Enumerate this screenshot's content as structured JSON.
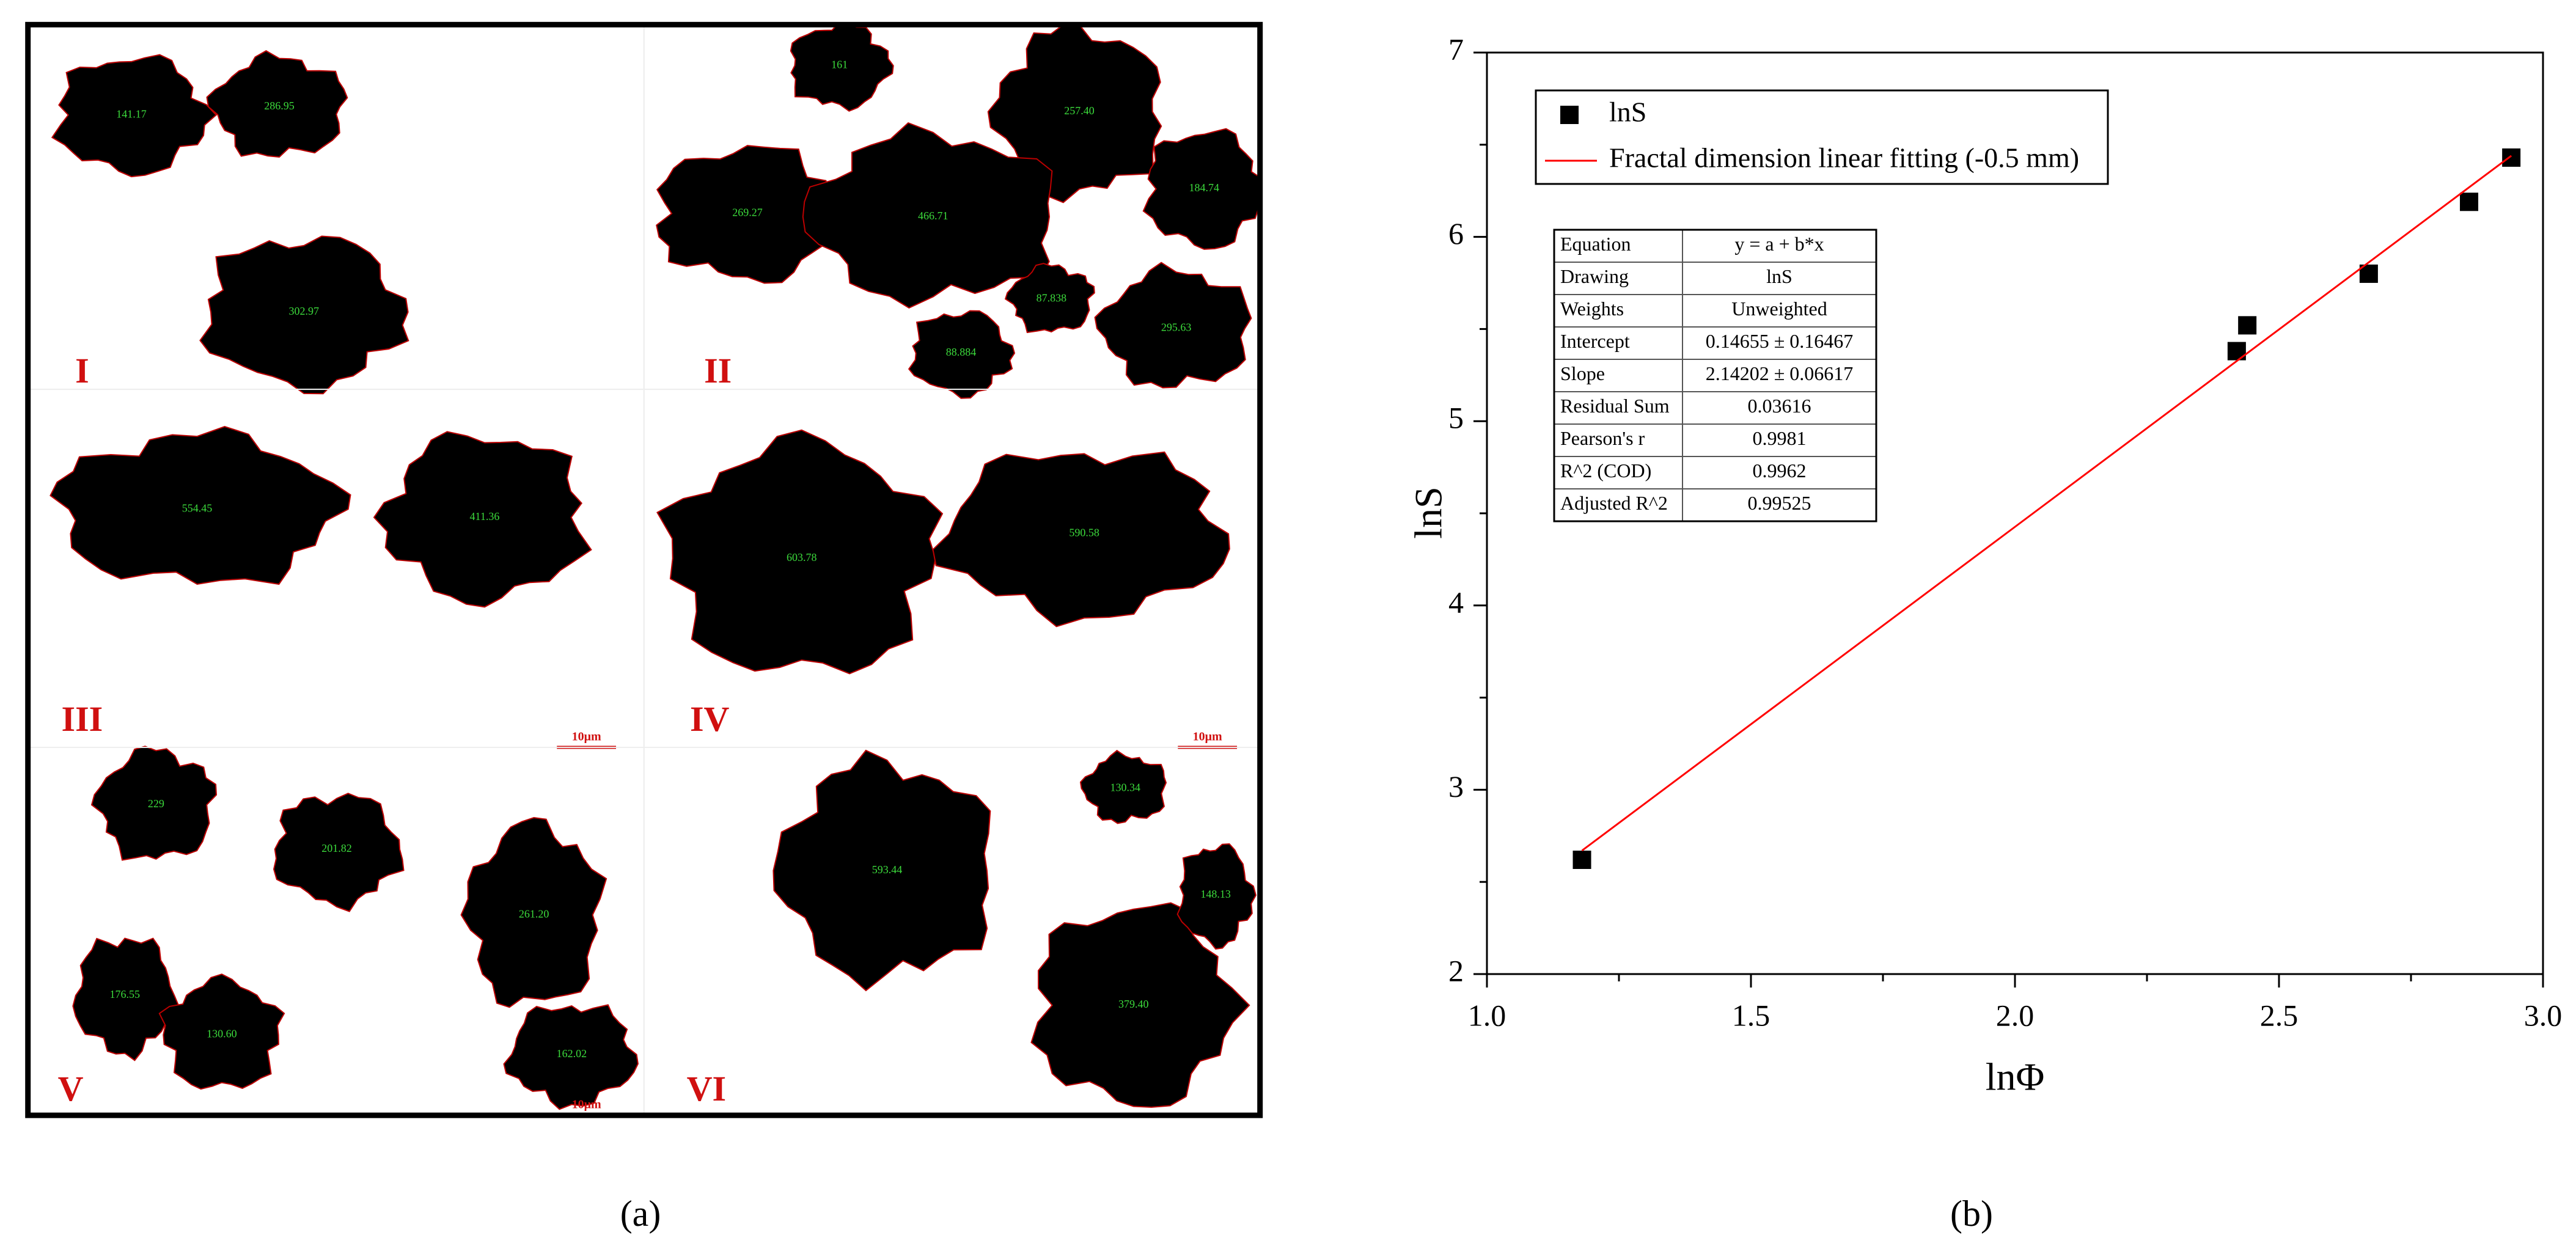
{
  "figure": {
    "captions": [
      "(a)",
      "(b)"
    ],
    "micrographs": [
      {
        "label": "I",
        "particles": [
          "141.17",
          "286.95",
          "302.97"
        ]
      },
      {
        "label": "II",
        "particles": [
          "161",
          "257.40",
          "269.27",
          "466.71",
          "184.74",
          "295.63",
          "88.884",
          "87.838"
        ]
      },
      {
        "label": "III",
        "particles": [
          "554.45",
          "411.36"
        ],
        "scale_bar": "10μm"
      },
      {
        "label": "IV",
        "particles": [
          "603.78",
          "590.58"
        ],
        "scale_bar": "10μm"
      },
      {
        "label": "V",
        "particles": [
          "229",
          "201.82",
          "261.20",
          "176.55",
          "130.60",
          "162.02"
        ],
        "scale_bar": "10μm"
      },
      {
        "label": "VI",
        "particles": [
          "593.44",
          "379.40",
          "130.34",
          "148.13"
        ]
      }
    ]
  },
  "chart_data": {
    "type": "scatter",
    "xlabel": "lnΦ",
    "ylabel": "lnS",
    "xlim": [
      1,
      3
    ],
    "xticks": [
      {
        "value": 1,
        "label": "1.0"
      },
      {
        "value": 1.5,
        "label": "1.5"
      },
      {
        "value": 2,
        "label": "2.0"
      },
      {
        "value": 2.5,
        "label": "2.5"
      },
      {
        "value": 3,
        "label": "3.0"
      }
    ],
    "xminorticks": [
      1.25,
      1.75,
      2.25,
      2.75
    ],
    "ylim": [
      2,
      7
    ],
    "yticks": [
      2,
      3,
      4,
      5,
      6,
      7
    ],
    "yminorticks": [
      2.5,
      3.5,
      4.5,
      5.5,
      6.5
    ],
    "legend": "upper-left",
    "series": [
      {
        "name": "lnS",
        "type": "scatter",
        "color": "#000000",
        "x": [
          1.18,
          2.42,
          2.44,
          2.67,
          2.86,
          2.94
        ],
        "values": [
          2.62,
          5.38,
          5.52,
          5.8,
          6.19,
          6.43
        ]
      },
      {
        "name": "Fractal dimension linear fitting (-0.5 mm)",
        "type": "line",
        "color": "#ff0000",
        "x": [
          1.18,
          2.94
        ],
        "values": [
          2.67,
          6.44
        ]
      }
    ],
    "fit_table": {
      "rows": [
        [
          "Equation",
          "y = a + b*x"
        ],
        [
          "Drawing",
          "lnS"
        ],
        [
          "Weights",
          "Unweighted"
        ],
        [
          "Intercept",
          "0.14655 ± 0.16467"
        ],
        [
          "Slope",
          "2.14202 ± 0.06617"
        ],
        [
          "Residual Sum",
          "0.03616"
        ],
        [
          "Pearson's r",
          "0.9981"
        ],
        [
          "R^2 (COD)",
          "0.9962"
        ],
        [
          "Adjusted R^2",
          "0.99525"
        ]
      ]
    }
  }
}
